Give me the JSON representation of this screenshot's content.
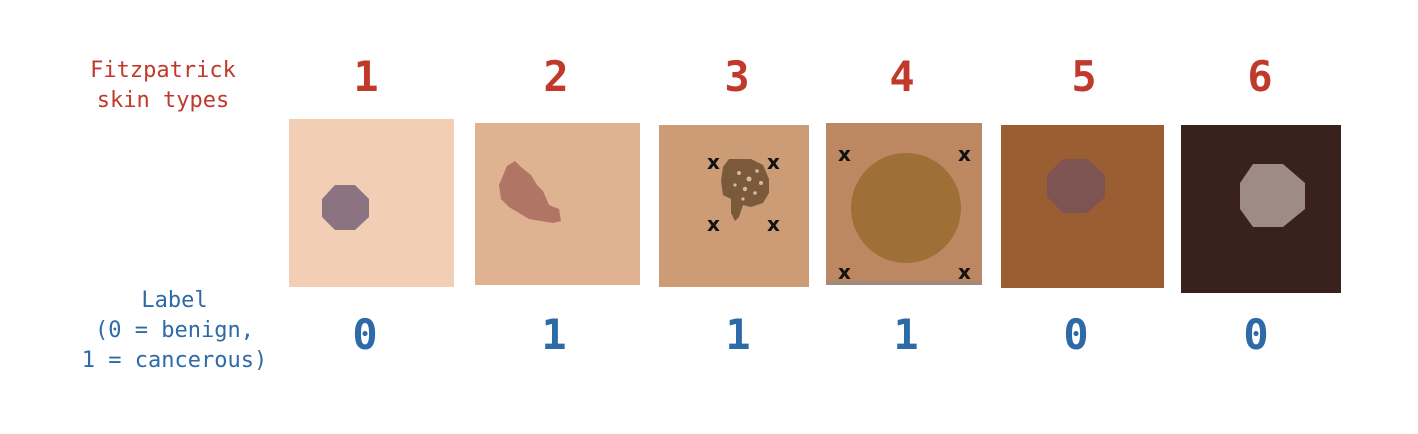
{
  "row_labels": {
    "skin_types": [
      "Fitzpatrick",
      "skin types"
    ],
    "label": [
      "Label",
      "(0 = benign,",
      "1 = cancerous)"
    ]
  },
  "samples": [
    {
      "skin_type": "1",
      "label": "0",
      "skin_color": "#f2cfb4",
      "lesion_color": "#8b7382",
      "markers": false
    },
    {
      "skin_type": "2",
      "label": "1",
      "skin_color": "#dfb291",
      "lesion_color": "#b07565",
      "markers": false
    },
    {
      "skin_type": "3",
      "label": "1",
      "skin_color": "#cc9c77",
      "lesion_color": "#7a5a3a",
      "markers": true
    },
    {
      "skin_type": "4",
      "label": "1",
      "skin_color": "#bd8762",
      "lesion_color": "#9e7038",
      "markers": true
    },
    {
      "skin_type": "5",
      "label": "0",
      "skin_color": "#9b5d32",
      "lesion_color": "#7d5451",
      "markers": false
    },
    {
      "skin_type": "6",
      "label": "0",
      "skin_color": "#39221d",
      "lesion_color": "#9e8b86",
      "markers": false
    }
  ],
  "marker_symbol": "x",
  "colors": {
    "skin_type_text": "#c0392b",
    "label_text": "#2e6aa8"
  }
}
